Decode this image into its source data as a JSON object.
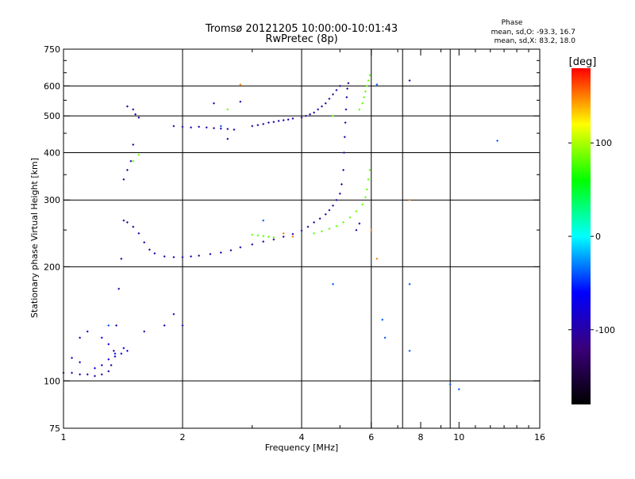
{
  "chart_data": {
    "type": "scatter",
    "title": "Tromsø 20121205 10:00:00-10:01:43",
    "subtitle": "RwPretec (8p)",
    "xlabel": "Frequency [MHz]",
    "ylabel": "Stationary phase Virtual Height [km]",
    "x_scale": "log",
    "y_scale": "log",
    "xlim": [
      1,
      16
    ],
    "ylim": [
      75,
      750
    ],
    "x_ticks": [
      1,
      2,
      4,
      6,
      8,
      10,
      16
    ],
    "x_tick_labels": [
      "1",
      "2",
      "4",
      "6",
      "8",
      "10",
      "16"
    ],
    "y_ticks": [
      75,
      100,
      200,
      300,
      400,
      500,
      600,
      750
    ],
    "y_tick_labels": [
      "75",
      "100",
      "200",
      "300",
      "400",
      "500",
      "600",
      "750"
    ],
    "grid": true,
    "grid_lines_x": [
      2,
      4,
      6,
      7.2,
      9.5
    ],
    "minor_x_ticks": [
      3,
      5,
      7,
      9,
      11,
      12,
      13,
      14,
      15
    ],
    "minor_y_ticks": [
      250,
      350,
      450,
      550,
      650,
      700
    ],
    "phase_box": {
      "heading": "Phase",
      "line_o": "mean, sd,O: -93.3, 16.7",
      "line_x": "mean, sd,X: 83.2, 18.0"
    },
    "colorbar": {
      "label": "[deg]",
      "range": [
        -180,
        180
      ],
      "ticks": [
        100,
        0,
        -100
      ],
      "tick_labels": [
        "100",
        "0",
        "-100"
      ],
      "stops": [
        "#000000",
        "#3a007a",
        "#0000ff",
        "#00ffff",
        "#00ff00",
        "#ffff00",
        "#ff0000"
      ]
    },
    "series": [
      {
        "phase": -100,
        "points": [
          [
            1.0,
            105
          ],
          [
            1.05,
            105
          ],
          [
            1.1,
            104
          ],
          [
            1.15,
            104
          ],
          [
            1.2,
            103
          ],
          [
            1.25,
            104
          ],
          [
            1.3,
            106
          ],
          [
            1.32,
            110
          ],
          [
            1.34,
            120
          ],
          [
            1.36,
            140
          ],
          [
            1.38,
            175
          ],
          [
            1.4,
            210
          ],
          [
            1.42,
            265
          ],
          [
            1.45,
            262
          ],
          [
            1.5,
            255
          ],
          [
            1.55,
            245
          ],
          [
            1.6,
            232
          ],
          [
            1.65,
            222
          ],
          [
            1.7,
            217
          ],
          [
            1.8,
            213
          ],
          [
            1.9,
            212
          ],
          [
            2.0,
            212
          ],
          [
            2.1,
            213
          ],
          [
            2.2,
            214
          ],
          [
            2.35,
            216
          ],
          [
            2.5,
            218
          ],
          [
            2.65,
            221
          ],
          [
            2.8,
            225
          ],
          [
            3.0,
            229
          ],
          [
            3.2,
            233
          ],
          [
            3.4,
            236
          ],
          [
            3.6,
            240
          ],
          [
            3.8,
            244
          ],
          [
            4.0,
            249
          ],
          [
            4.15,
            255
          ],
          [
            4.3,
            262
          ],
          [
            4.45,
            268
          ],
          [
            4.6,
            275
          ],
          [
            4.7,
            282
          ],
          [
            4.8,
            290
          ],
          [
            4.9,
            300
          ],
          [
            5.0,
            312
          ],
          [
            5.05,
            330
          ],
          [
            5.1,
            360
          ],
          [
            5.12,
            400
          ],
          [
            5.14,
            440
          ],
          [
            5.16,
            480
          ],
          [
            5.18,
            520
          ],
          [
            5.2,
            560
          ],
          [
            5.22,
            590
          ],
          [
            5.25,
            610
          ],
          [
            1.45,
            530
          ],
          [
            1.5,
            520
          ],
          [
            1.52,
            505
          ],
          [
            1.55,
            495
          ],
          [
            1.5,
            420
          ],
          [
            1.48,
            380
          ],
          [
            1.45,
            360
          ],
          [
            1.42,
            340
          ],
          [
            1.9,
            470
          ],
          [
            2.0,
            468
          ],
          [
            2.1,
            466
          ],
          [
            2.2,
            468
          ],
          [
            2.3,
            466
          ],
          [
            2.4,
            464
          ],
          [
            2.5,
            463
          ],
          [
            2.6,
            462
          ],
          [
            2.7,
            460
          ],
          [
            3.0,
            470
          ],
          [
            3.1,
            473
          ],
          [
            3.2,
            476
          ],
          [
            3.3,
            480
          ],
          [
            3.4,
            482
          ],
          [
            3.5,
            485
          ],
          [
            3.6,
            487
          ],
          [
            3.7,
            489
          ],
          [
            3.8,
            492
          ],
          [
            4.0,
            495
          ],
          [
            4.1,
            500
          ],
          [
            4.2,
            505
          ],
          [
            4.3,
            510
          ],
          [
            4.4,
            520
          ],
          [
            4.5,
            530
          ],
          [
            4.6,
            540
          ],
          [
            4.7,
            555
          ],
          [
            4.8,
            570
          ],
          [
            4.9,
            585
          ],
          [
            5.0,
            600
          ],
          [
            2.6,
            435
          ],
          [
            2.4,
            540
          ],
          [
            2.8,
            545
          ],
          [
            1.9,
            150
          ],
          [
            2.0,
            140
          ],
          [
            1.8,
            140
          ],
          [
            1.6,
            135
          ],
          [
            7.5,
            620
          ],
          [
            5.5,
            250
          ],
          [
            5.6,
            260
          ]
        ]
      },
      {
        "phase": -75,
        "points": [
          [
            1.05,
            115
          ],
          [
            1.1,
            112
          ],
          [
            1.2,
            108
          ],
          [
            1.25,
            110
          ],
          [
            1.3,
            114
          ],
          [
            1.35,
            116
          ],
          [
            1.4,
            118
          ],
          [
            1.42,
            122
          ],
          [
            1.45,
            120
          ],
          [
            1.3,
            125
          ],
          [
            1.25,
            130
          ],
          [
            1.35,
            118
          ],
          [
            1.15,
            135
          ],
          [
            1.1,
            130
          ]
        ]
      },
      {
        "phase": 83,
        "points": [
          [
            3.0,
            243
          ],
          [
            3.1,
            242
          ],
          [
            3.2,
            241
          ],
          [
            3.3,
            240
          ],
          [
            3.4,
            239
          ],
          [
            4.3,
            245
          ],
          [
            4.5,
            248
          ],
          [
            4.7,
            252
          ],
          [
            4.9,
            256
          ],
          [
            5.1,
            262
          ],
          [
            5.3,
            270
          ],
          [
            5.5,
            280
          ],
          [
            5.7,
            292
          ],
          [
            5.8,
            305
          ],
          [
            5.85,
            320
          ],
          [
            5.9,
            340
          ],
          [
            5.95,
            360
          ],
          [
            5.6,
            520
          ],
          [
            5.7,
            540
          ],
          [
            5.75,
            560
          ],
          [
            5.8,
            580
          ],
          [
            5.85,
            600
          ],
          [
            5.9,
            620
          ],
          [
            5.95,
            640
          ],
          [
            1.5,
            380
          ],
          [
            1.55,
            395
          ],
          [
            2.6,
            520
          ],
          [
            4.8,
            500
          ]
        ]
      },
      {
        "phase": 150,
        "points": [
          [
            2.8,
            605
          ],
          [
            3.6,
            245
          ],
          [
            6.0,
            250
          ],
          [
            6.2,
            210
          ],
          [
            7.5,
            300
          ],
          [
            3.8,
            240
          ]
        ]
      },
      {
        "phase": -40,
        "points": [
          [
            6.2,
            605
          ],
          [
            6.5,
            130
          ],
          [
            7.5,
            180
          ],
          [
            7.5,
            120
          ],
          [
            10.0,
            95
          ],
          [
            12.5,
            430
          ],
          [
            2.5,
            470
          ],
          [
            1.3,
            140
          ],
          [
            4.8,
            180
          ],
          [
            6.4,
            145
          ],
          [
            9.5,
            98
          ],
          [
            3.2,
            265
          ]
        ]
      }
    ]
  }
}
